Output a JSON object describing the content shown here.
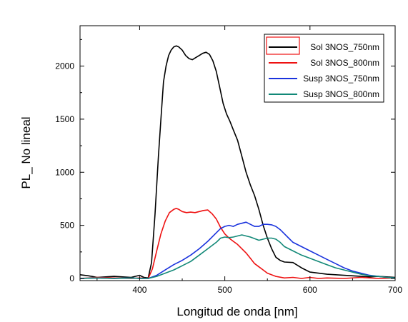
{
  "chart_data": {
    "type": "line",
    "title": "",
    "xlabel": "Longitud de onda [nm]",
    "ylabel": "PL_ No lineal",
    "xlim": [
      330,
      700
    ],
    "ylim": [
      -20,
      2380
    ],
    "xticks": [
      400,
      500,
      600,
      700
    ],
    "yticks": [
      0,
      500,
      1000,
      1500,
      2000
    ],
    "grid": false,
    "legend_position": "top-right",
    "series": [
      {
        "name": "Sol 3NOS_750nm",
        "color": "#000000",
        "x": [
          330,
          340,
          350,
          360,
          370,
          380,
          390,
          400,
          405,
          410,
          414,
          418,
          422,
          425,
          428,
          431,
          434,
          437,
          440,
          443,
          446,
          450,
          454,
          458,
          462,
          466,
          470,
          474,
          478,
          482,
          486,
          490,
          494,
          498,
          502,
          506,
          510,
          515,
          520,
          525,
          530,
          535,
          540,
          545,
          550,
          555,
          560,
          565,
          570,
          580,
          590,
          600,
          610,
          620,
          630,
          640,
          650,
          660,
          670,
          680,
          690,
          700
        ],
        "y": [
          35,
          25,
          10,
          15,
          20,
          15,
          10,
          30,
          10,
          5,
          150,
          600,
          1150,
          1500,
          1850,
          2000,
          2100,
          2150,
          2180,
          2190,
          2180,
          2150,
          2100,
          2070,
          2060,
          2080,
          2100,
          2120,
          2130,
          2110,
          2050,
          1950,
          1800,
          1650,
          1550,
          1480,
          1400,
          1300,
          1150,
          1000,
          880,
          780,
          650,
          500,
          380,
          280,
          200,
          170,
          155,
          150,
          100,
          60,
          50,
          40,
          35,
          30,
          25,
          20,
          15,
          20,
          15,
          10
        ]
      },
      {
        "name": "Sol 3NOS_800nm",
        "color": "#ee1111",
        "x": [
          330,
          350,
          370,
          390,
          400,
          410,
          415,
          420,
          425,
          430,
          435,
          440,
          443,
          446,
          450,
          455,
          460,
          465,
          470,
          475,
          480,
          485,
          490,
          495,
          500,
          505,
          510,
          515,
          520,
          525,
          530,
          535,
          540,
          545,
          550,
          560,
          570,
          580,
          590,
          600,
          610,
          620,
          640,
          660,
          680,
          700
        ],
        "y": [
          0,
          10,
          5,
          0,
          5,
          0,
          90,
          260,
          420,
          540,
          620,
          650,
          660,
          650,
          630,
          620,
          625,
          620,
          630,
          640,
          645,
          610,
          560,
          480,
          420,
          380,
          350,
          320,
          280,
          240,
          190,
          140,
          110,
          80,
          50,
          20,
          5,
          10,
          0,
          10,
          0,
          5,
          0,
          10,
          0,
          5
        ]
      },
      {
        "name": "Susp 3NOS_750nm",
        "color": "#1a33dd",
        "x": [
          330,
          350,
          370,
          390,
          400,
          410,
          420,
          430,
          440,
          450,
          460,
          470,
          480,
          490,
          495,
          500,
          505,
          510,
          515,
          520,
          525,
          530,
          535,
          540,
          545,
          550,
          555,
          560,
          565,
          570,
          575,
          580,
          590,
          600,
          610,
          620,
          630,
          640,
          650,
          660,
          670,
          680,
          690,
          700
        ],
        "y": [
          0,
          5,
          0,
          5,
          0,
          0,
          30,
          80,
          130,
          170,
          220,
          280,
          350,
          430,
          470,
          490,
          500,
          490,
          510,
          520,
          530,
          510,
          490,
          490,
          510,
          510,
          505,
          490,
          460,
          420,
          380,
          340,
          300,
          260,
          220,
          180,
          140,
          100,
          70,
          50,
          30,
          20,
          10,
          5
        ]
      },
      {
        "name": "Susp 3NOS_800nm",
        "color": "#118877",
        "x": [
          330,
          350,
          370,
          390,
          400,
          410,
          420,
          430,
          440,
          450,
          460,
          470,
          480,
          490,
          495,
          500,
          505,
          510,
          515,
          520,
          525,
          530,
          540,
          545,
          550,
          555,
          560,
          565,
          570,
          580,
          590,
          600,
          610,
          620,
          630,
          640,
          650,
          660,
          670,
          680,
          690,
          700
        ],
        "y": [
          0,
          5,
          0,
          5,
          0,
          0,
          20,
          50,
          80,
          120,
          160,
          220,
          280,
          340,
          380,
          390,
          385,
          390,
          400,
          410,
          400,
          390,
          360,
          370,
          380,
          380,
          370,
          340,
          300,
          260,
          220,
          190,
          160,
          130,
          100,
          80,
          60,
          40,
          25,
          20,
          10,
          5
        ]
      }
    ]
  }
}
